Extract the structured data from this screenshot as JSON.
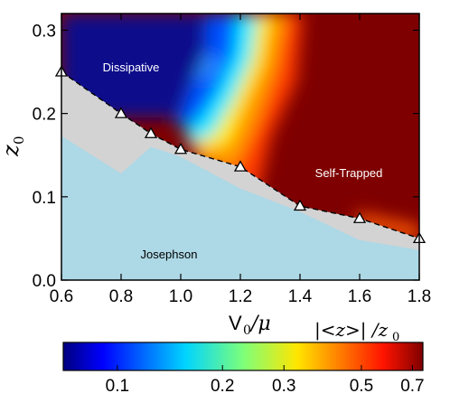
{
  "chart_data": {
    "type": "heatmap",
    "xlabel_main": "V",
    "xlabel_sub": "0",
    "xlabel_tail": "/μ",
    "ylabel_main": "z",
    "ylabel_sub": "0",
    "xlim": [
      0.6,
      1.8
    ],
    "ylim": [
      0.0,
      0.32
    ],
    "xticks": [
      "0.6",
      "0.8",
      "1.0",
      "1.2",
      "1.4",
      "1.6",
      "1.8"
    ],
    "yticks": [
      "0.0",
      "0.1",
      "0.2",
      "0.3"
    ],
    "xtick_values": [
      0.6,
      0.8,
      1.0,
      1.2,
      1.4,
      1.6,
      1.8
    ],
    "ytick_values": [
      0.0,
      0.1,
      0.2,
      0.3
    ],
    "regions": {
      "dissipative": "Dissipative",
      "self_trapped": "Self-Trapped",
      "josephson": "Josephson"
    },
    "boundary_points": {
      "x": [
        0.6,
        0.8,
        0.9,
        1.0,
        1.2,
        1.4,
        1.6,
        1.8
      ],
      "y": [
        0.25,
        0.2,
        0.176,
        0.157,
        0.136,
        0.089,
        0.074,
        0.05
      ]
    },
    "josephson_boundary": {
      "x": [
        0.6,
        0.8,
        0.9,
        1.0,
        1.2,
        1.4,
        1.6,
        1.8
      ],
      "y": [
        0.173,
        0.128,
        0.16,
        0.148,
        0.11,
        0.082,
        0.048,
        0.036
      ]
    },
    "colorbar": {
      "label": "|<z>| /z",
      "label_sub": "0",
      "ticks": [
        "0.1",
        "0.2",
        "0.3",
        "0.5",
        "0.7"
      ],
      "tick_values": [
        0.1,
        0.2,
        0.3,
        0.5,
        0.7
      ],
      "range": [
        0.07,
        0.75
      ],
      "scale": "log",
      "colormap": "jet"
    },
    "colors": {
      "josephson_fill": "#add8e6",
      "gray_fill": "#d3d3d3",
      "dissipative_low": "#0a0a8c",
      "self_trapped_high": "#7f0000"
    }
  }
}
